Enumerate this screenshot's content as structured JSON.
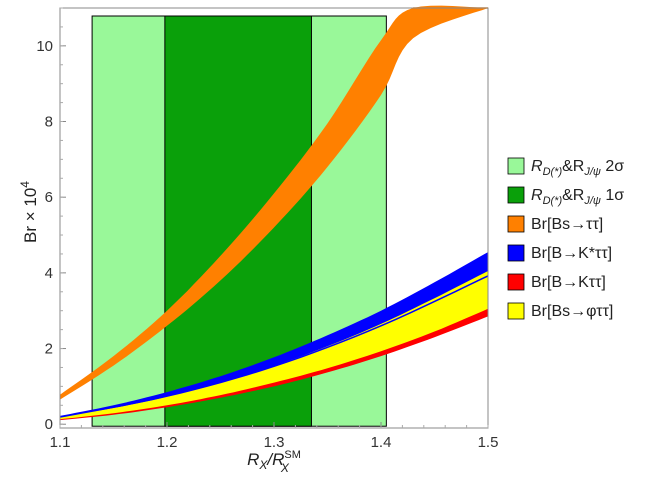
{
  "chart_data": {
    "type": "area",
    "xlabel": "R",
    "xlabel_sub": "X",
    "xlabel_div": "/R",
    "xlabel_sup": "SM",
    "xlabel_sub2": "X",
    "ylabel": "Br × 10",
    "ylabel_sup": "4",
    "xlim": [
      1.1,
      1.5
    ],
    "ylim": [
      -0.1,
      11.0
    ],
    "xticks": [
      1.1,
      1.2,
      1.3,
      1.4,
      1.5
    ],
    "xtick_labels": [
      "1.1",
      "1.2",
      "1.3",
      "1.4",
      "1.5"
    ],
    "yticks": [
      0,
      2,
      4,
      6,
      8,
      10
    ],
    "ytick_labels": [
      "0",
      "2",
      "4",
      "6",
      "8",
      "10"
    ],
    "grid": false,
    "legend_position": "right",
    "regions": [
      {
        "name": "R_D(*) & R_J/ψ 2σ",
        "x_range": [
          1.13,
          1.405
        ],
        "color": "#99f899"
      },
      {
        "name": "R_D(*) & R_J/ψ 1σ",
        "x_range": [
          1.198,
          1.335
        ],
        "color": "#0aa00a"
      }
    ],
    "series": [
      {
        "name": "Br[Bs→ττ]",
        "color": "#ff8000",
        "x": [
          1.1,
          1.15,
          1.2,
          1.25,
          1.3,
          1.35,
          1.4,
          1.43,
          1.5
        ],
        "lower": [
          0.65,
          1.55,
          2.6,
          3.8,
          5.2,
          6.8,
          8.7,
          10.2,
          11.0
        ],
        "upper": [
          0.78,
          1.8,
          3.0,
          4.45,
          6.1,
          7.95,
          10.15,
          11.0,
          11.0
        ]
      },
      {
        "name": "Br[B→K*ττ]",
        "color": "#0000ff",
        "x": [
          1.1,
          1.15,
          1.2,
          1.25,
          1.3,
          1.35,
          1.4,
          1.45,
          1.5
        ],
        "lower": [
          0.17,
          0.37,
          0.62,
          0.93,
          1.3,
          1.72,
          2.2,
          2.72,
          3.3
        ],
        "upper": [
          0.22,
          0.5,
          0.85,
          1.27,
          1.77,
          2.35,
          3.0,
          3.75,
          4.55
        ]
      },
      {
        "name": "Br[B→Kττ]",
        "color": "#ff0000",
        "x": [
          1.1,
          1.15,
          1.2,
          1.25,
          1.3,
          1.35,
          1.4,
          1.45,
          1.5
        ],
        "lower": [
          0.11,
          0.25,
          0.45,
          0.7,
          1.0,
          1.37,
          1.8,
          2.3,
          2.85
        ],
        "upper": [
          0.18,
          0.4,
          0.69,
          1.04,
          1.46,
          1.96,
          2.52,
          3.17,
          3.9
        ]
      },
      {
        "name": "Br[Bs→φττ]",
        "color": "#ffff00",
        "x": [
          1.1,
          1.15,
          1.2,
          1.25,
          1.3,
          1.35,
          1.4,
          1.45,
          1.5
        ],
        "lower": [
          0.13,
          0.29,
          0.5,
          0.77,
          1.1,
          1.48,
          1.93,
          2.45,
          3.05
        ],
        "upper": [
          0.2,
          0.43,
          0.73,
          1.1,
          1.54,
          2.06,
          2.65,
          3.33,
          4.05
        ]
      }
    ],
    "lines": [
      {
        "name": "blue-central-line",
        "color": "#0000ff",
        "x": [
          1.1,
          1.2,
          1.3,
          1.4,
          1.5
        ],
        "y": [
          0.19,
          0.74,
          1.53,
          2.6,
          3.92
        ]
      },
      {
        "name": "orange-saturation-line",
        "color": "#ff8000",
        "x": [
          1.43,
          1.5
        ],
        "y": [
          11.0,
          11.0
        ]
      }
    ],
    "legend": [
      {
        "pre": "R",
        "sub": "D(*)",
        "mid": "&R",
        "sub2": "J/ψ",
        "post": " 2σ",
        "color": "#99f899"
      },
      {
        "pre": "R",
        "sub": "D(*)",
        "mid": "&R",
        "sub2": "J/ψ",
        "post": " 1σ",
        "color": "#0aa00a"
      },
      {
        "text": "Br[Bs→ττ]",
        "color": "#ff8000"
      },
      {
        "text": "Br[B→K*ττ]",
        "color": "#0000ff"
      },
      {
        "text": "Br[B→Kττ]",
        "color": "#ff0000"
      },
      {
        "text": "Br[Bs→φττ]",
        "color": "#ffff00"
      }
    ]
  }
}
